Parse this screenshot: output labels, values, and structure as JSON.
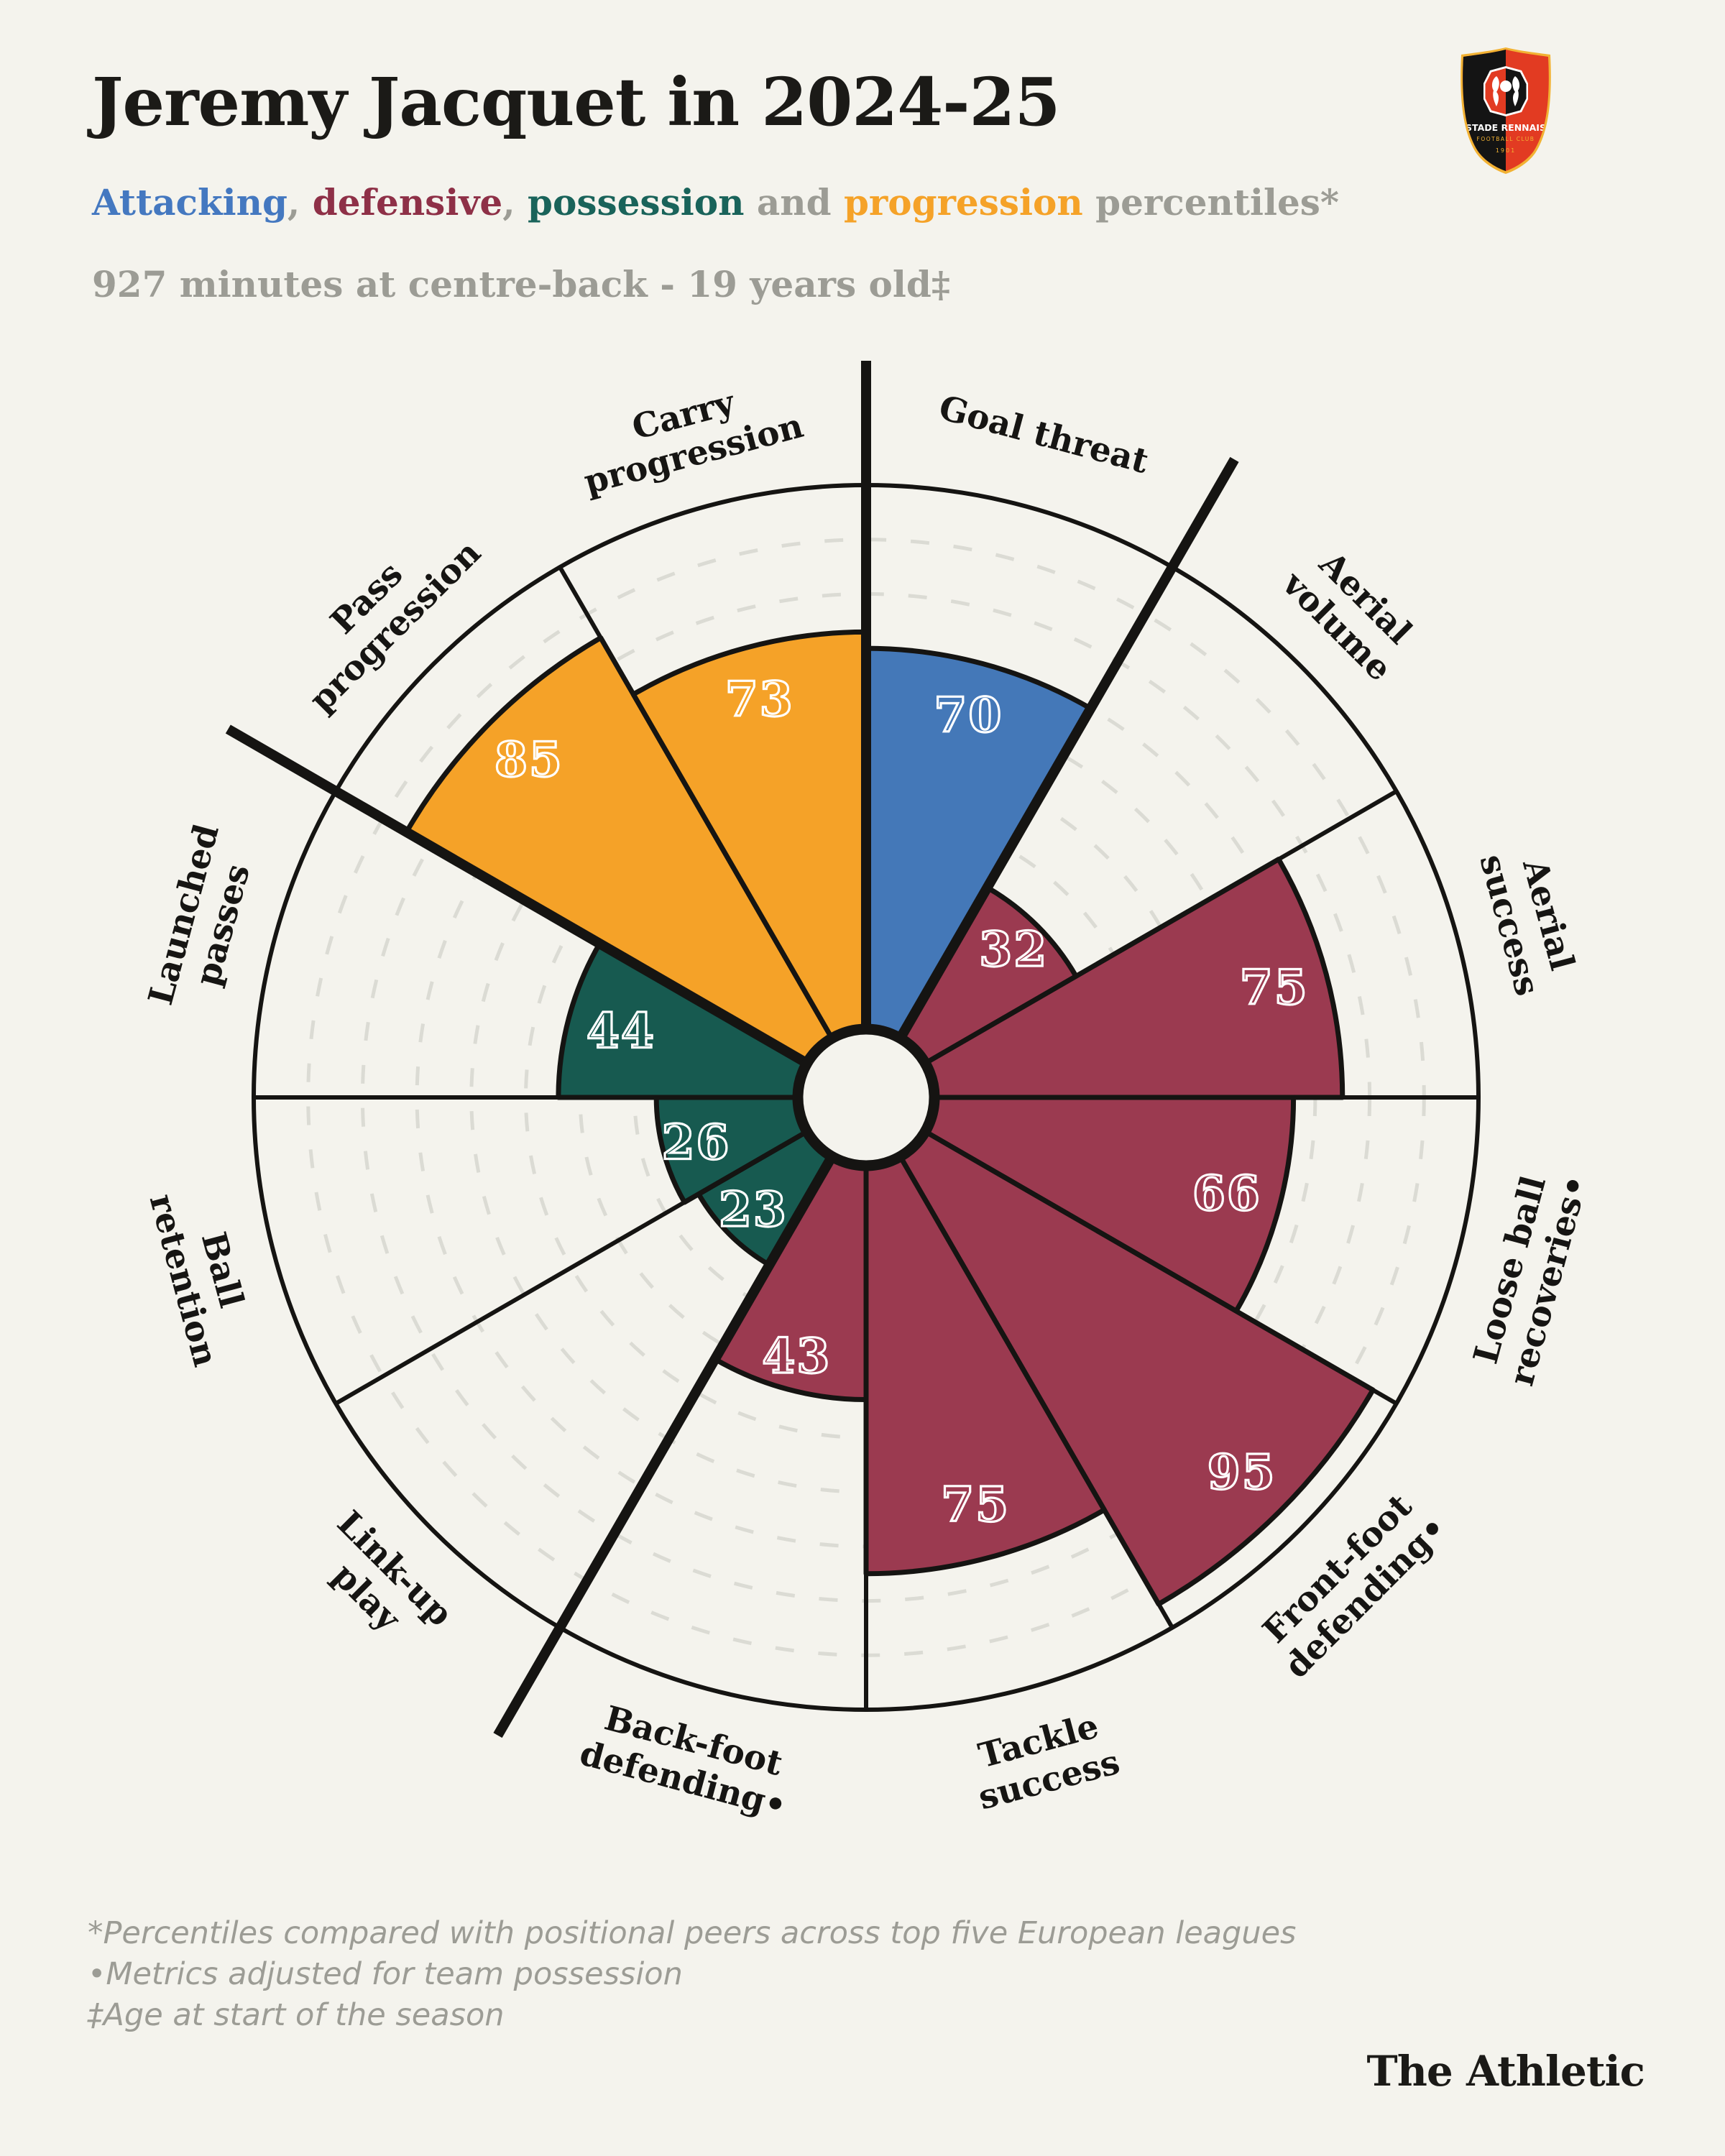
{
  "header": {
    "title": "Jeremy Jacquet in 2024-25",
    "subtitle_parts": [
      {
        "text": "Attacking",
        "color": "#4478C0"
      },
      {
        "text": ", ",
        "color": "#9C9C95"
      },
      {
        "text": "defensive",
        "color": "#8E3047"
      },
      {
        "text": ", ",
        "color": "#9C9C95"
      },
      {
        "text": "possession",
        "color": "#19635A"
      },
      {
        "text": " and ",
        "color": "#9C9C95"
      },
      {
        "text": "progression",
        "color": "#F5A228"
      },
      {
        "text": " percentiles*",
        "color": "#9C9C95"
      }
    ],
    "minutes_line": "927 minutes at centre-back - 19 years old‡"
  },
  "badge": {
    "club_line1": "STADE RENNAIS",
    "club_line2": "FOOTBALL CLUB",
    "club_year": "1901",
    "colors": {
      "red": "#E23B22",
      "black": "#141414",
      "gold": "#F2B233"
    }
  },
  "chart_data": {
    "type": "pie",
    "subtype": "pizza-percentile-chart",
    "title": "Jeremy Jacquet in 2024-25",
    "scale_min": 0,
    "scale_max": 100,
    "gridlines_every": 10,
    "grid_style": "dashed",
    "legend_position": "in-subtitle",
    "groups": {
      "attacking": {
        "color": "#4478B8"
      },
      "defensive": {
        "color": "#9B3A50"
      },
      "possession": {
        "color": "#175A50"
      },
      "progression": {
        "color": "#F5A228"
      }
    },
    "slices": [
      {
        "label": "Goal threat",
        "lines": [
          "Goal threat"
        ],
        "value": 70,
        "group": "attacking"
      },
      {
        "label": "Aerial volume",
        "lines": [
          "Aerial",
          "volume"
        ],
        "value": 32,
        "group": "defensive"
      },
      {
        "label": "Aerial success",
        "lines": [
          "Aerial",
          "success"
        ],
        "value": 75,
        "group": "defensive"
      },
      {
        "label": "Loose ball recoveries•",
        "lines": [
          "Loose ball",
          "recoveries•"
        ],
        "value": 66,
        "group": "defensive"
      },
      {
        "label": "Front-foot defending•",
        "lines": [
          "Front-foot",
          "defending•"
        ],
        "value": 95,
        "group": "defensive"
      },
      {
        "label": "Tackle success",
        "lines": [
          "Tackle",
          "success"
        ],
        "value": 75,
        "group": "defensive"
      },
      {
        "label": "Back-foot defending•",
        "lines": [
          "Back-foot",
          "defending•"
        ],
        "value": 43,
        "group": "defensive"
      },
      {
        "label": "Link-up play",
        "lines": [
          "Link-up",
          "play"
        ],
        "value": 23,
        "group": "possession"
      },
      {
        "label": "Ball retention",
        "lines": [
          "Ball",
          "retention"
        ],
        "value": 26,
        "group": "possession"
      },
      {
        "label": "Launched passes",
        "lines": [
          "Launched",
          "passes"
        ],
        "value": 44,
        "group": "possession"
      },
      {
        "label": "Pass progression",
        "lines": [
          "Pass",
          "progression"
        ],
        "value": 85,
        "group": "progression"
      },
      {
        "label": "Carry progression",
        "lines": [
          "Carry",
          "progression"
        ],
        "value": 73,
        "group": "progression"
      }
    ],
    "group_boundary_angles_deg": [
      0,
      30,
      210,
      300
    ],
    "colors": {
      "background": "#F4F3ED",
      "line": "#151412",
      "gridline": "#DBDBD4",
      "value_text": "#FFFFFF",
      "label_text": "#161513"
    }
  },
  "footnotes": [
    "*Percentiles compared with positional peers across top five European leagues",
    "•Metrics adjusted for team possession",
    "‡Age at start of the season"
  ],
  "brand": "The Athletic"
}
